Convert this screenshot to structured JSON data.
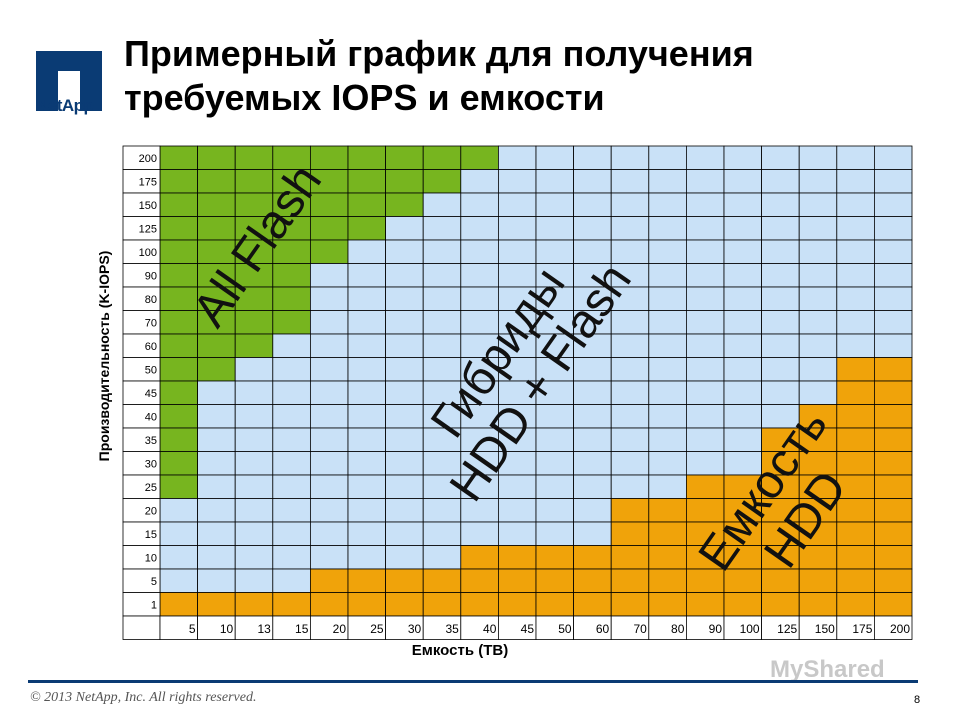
{
  "header": {
    "logo_text": "NetApp",
    "title_line1": "Примерный график для получения",
    "title_line2": "требуемых IOPS и емкости"
  },
  "footer": {
    "copyright": "© 2013 NetApp, Inc. All rights reserved.",
    "page": "8",
    "watermark": "MyShared"
  },
  "colors": {
    "all_flash": "#77b51f",
    "hybrid": "#c9e1f7",
    "hdd": "#f0a30a",
    "grid": "#000000"
  },
  "chart_data": {
    "type": "heatmap",
    "xlabel": "Емкость (TB)",
    "ylabel": "Производительность (K-IOPS)",
    "x": [
      "5",
      "10",
      "13",
      "15",
      "20",
      "25",
      "30",
      "35",
      "40",
      "45",
      "50",
      "60",
      "70",
      "80",
      "90",
      "100",
      "125",
      "150",
      "175",
      "200"
    ],
    "y": [
      "200",
      "175",
      "150",
      "125",
      "100",
      "90",
      "80",
      "70",
      "60",
      "50",
      "45",
      "40",
      "35",
      "30",
      "25",
      "20",
      "15",
      "10",
      "5",
      "1"
    ],
    "zones": [
      {
        "key": "all_flash",
        "label_lines": [
          "All Flash"
        ]
      },
      {
        "key": "hybrid",
        "label_lines": [
          "Гибриды",
          "HDD + Flash"
        ]
      },
      {
        "key": "hdd",
        "label_lines": [
          "Емкость",
          "HDD"
        ]
      }
    ],
    "green_cols_per_row": [
      9,
      8,
      7,
      6,
      5,
      4,
      4,
      4,
      3,
      2,
      1,
      1,
      1,
      1,
      1,
      0,
      0,
      0,
      0,
      0
    ],
    "orange_cols_per_row": [
      0,
      0,
      0,
      0,
      0,
      0,
      0,
      0,
      0,
      2,
      2,
      3,
      4,
      4,
      6,
      8,
      8,
      12,
      16,
      20
    ]
  }
}
